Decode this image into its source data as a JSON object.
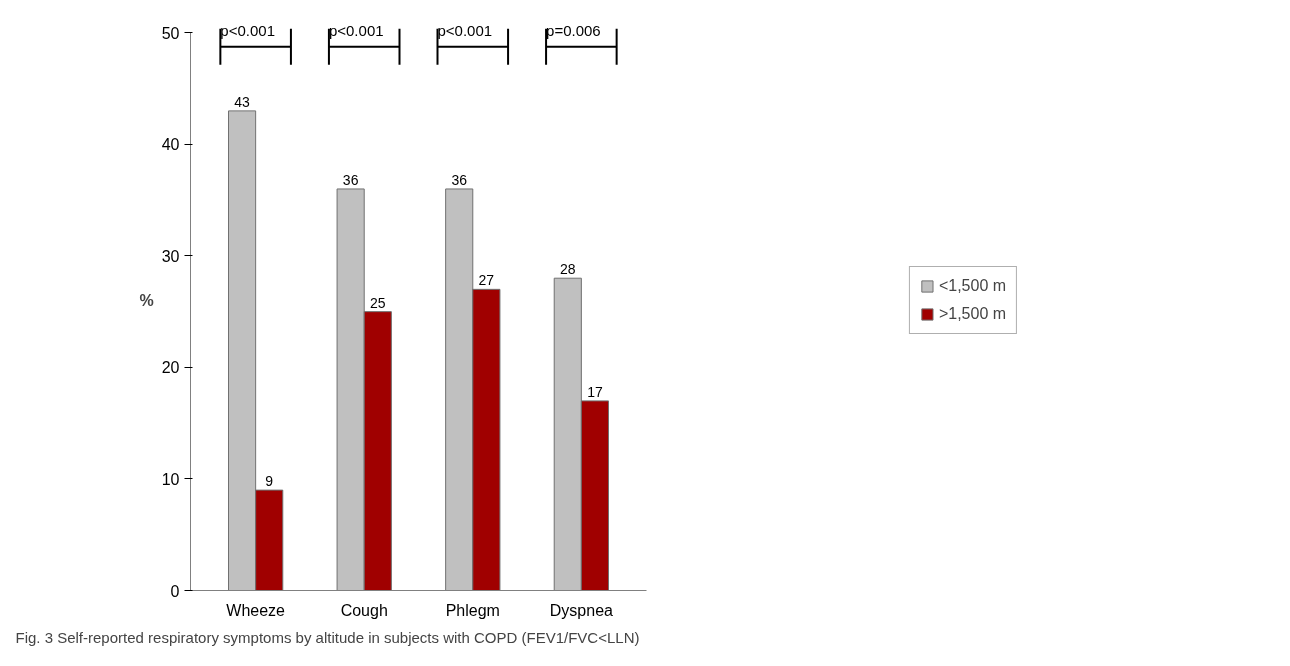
{
  "chart_data": {
    "type": "bar",
    "ylabel": "%",
    "categories": [
      "Wheeze",
      "Cough",
      "Phlegm",
      "Dyspnea"
    ],
    "series": [
      {
        "name": "<1,500 m",
        "color": "#c0c0c0",
        "values": [
          43,
          36,
          36,
          28
        ]
      },
      {
        "name": ">1,500 m",
        "color": "#a00000",
        "values": [
          9,
          25,
          27,
          17
        ]
      }
    ],
    "ylim": [
      0,
      50
    ],
    "yticks": [
      0,
      10,
      20,
      30,
      40,
      50
    ],
    "grid": false,
    "legend": "right",
    "data_labels": true,
    "annotations": [
      "p<0.001",
      "p<0.001",
      "p<0.001",
      "p=0.006",
      "Fig. 3 Self-reported respiratory symptoms by altitude in subjects with COPD (FEV1/FVC<LLN)"
    ]
  }
}
